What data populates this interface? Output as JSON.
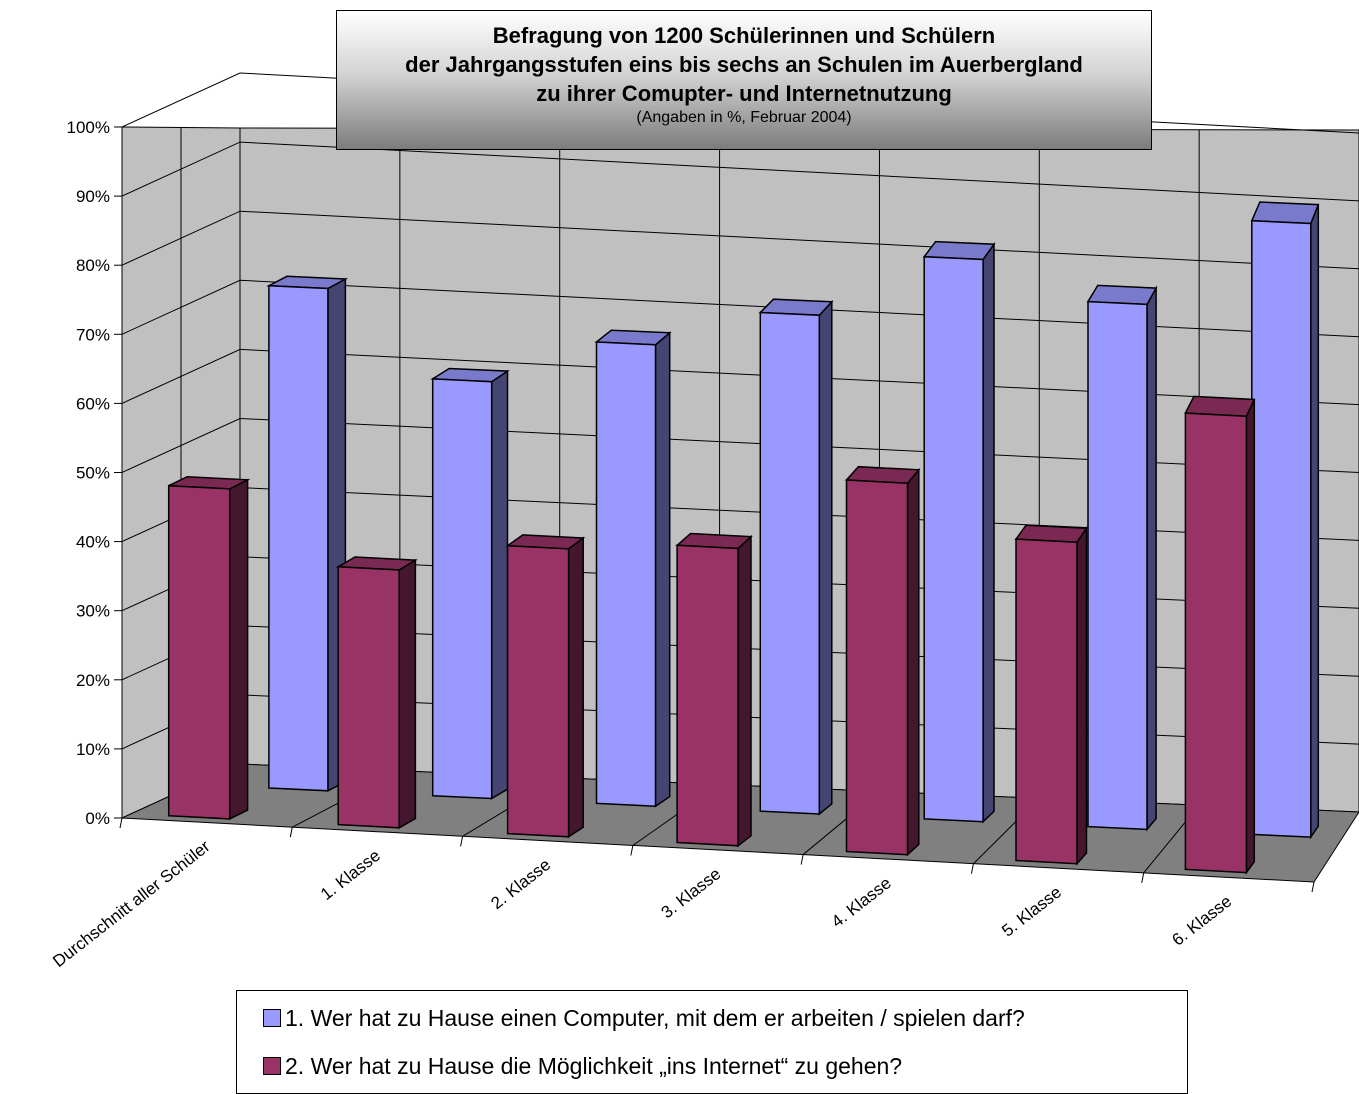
{
  "chart_data": {
    "type": "bar",
    "title_lines": [
      "Befragung von 1200 Schülerinnen und Schülern",
      "der Jahrgangsstufen eins bis sechs an Schulen im Auerbergland",
      "zu ihrer Comupter- und Internetnutzung"
    ],
    "subtitle": "(Angaben in %, Februar 2004)",
    "categories": [
      "Durchschnitt aller Schüler",
      "1. Klasse",
      "2. Klasse",
      "3. Klasse",
      "4. Klasse",
      "5. Klasse",
      "6. Klasse"
    ],
    "series": [
      {
        "name": "1. Wer hat zu Hause einen Computer, mit dem er arbeiten / spielen darf?",
        "values": [
          73,
          61,
          68,
          74,
          84,
          79,
          93
        ],
        "color": "#9999ff"
      },
      {
        "name": "2. Wer hat zu Hause die Möglichkeit „ins Internet“ zu gehen?",
        "values": [
          48,
          38,
          43,
          45,
          57,
          50,
          72
        ],
        "color": "#993366"
      }
    ],
    "ylim": [
      0,
      100
    ],
    "yticks": [
      "0%",
      "10%",
      "20%",
      "30%",
      "40%",
      "50%",
      "60%",
      "70%",
      "80%",
      "90%",
      "100%"
    ],
    "xlabel": "",
    "ylabel": "",
    "grid": true,
    "legend_position": "bottom"
  }
}
